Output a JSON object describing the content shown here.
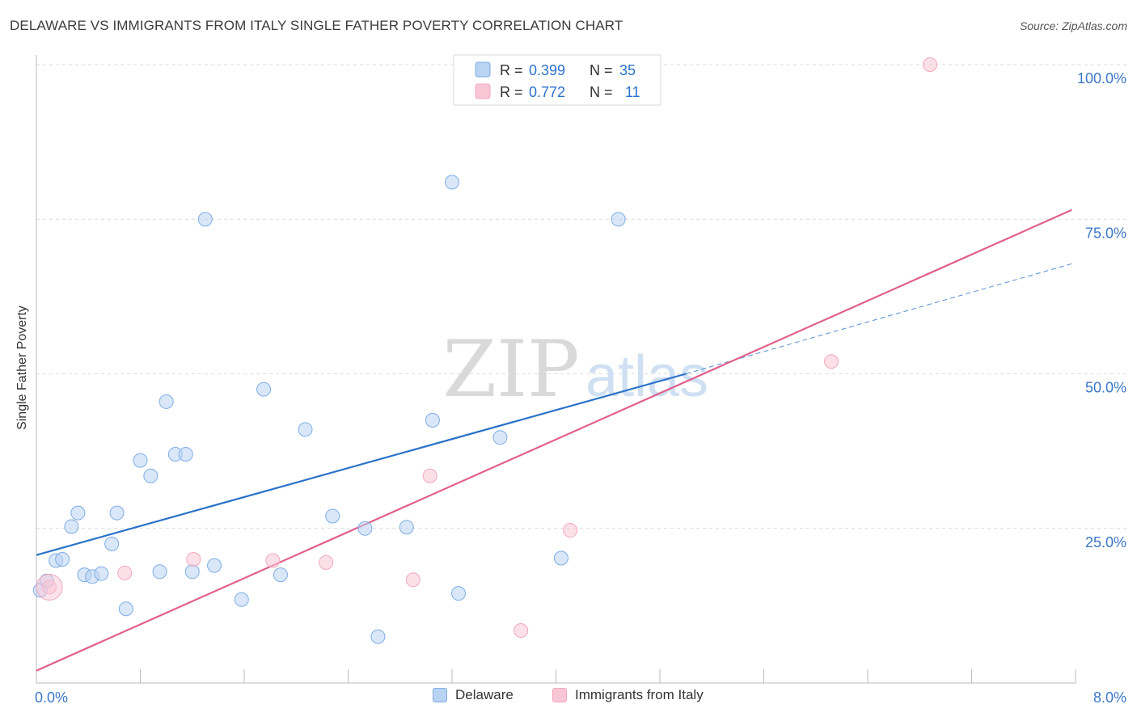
{
  "header": {
    "title": "DELAWARE VS IMMIGRANTS FROM ITALY SINGLE FATHER POVERTY CORRELATION CHART",
    "source": "Source: ZipAtlas.com"
  },
  "watermark": {
    "zip": "ZIP",
    "atlas": "atlas"
  },
  "chart_data": {
    "type": "scatter",
    "title": "DELAWARE VS IMMIGRANTS FROM ITALY SINGLE FATHER POVERTY CORRELATION CHART",
    "xlabel": "",
    "ylabel": "Single Father Poverty",
    "xlim": [
      0,
      8
    ],
    "ylim": [
      0,
      100
    ],
    "x_tick_labels": [
      "0.0%",
      "8.0%"
    ],
    "y_ticks": [
      25,
      50,
      75,
      100
    ],
    "y_tick_labels": [
      "25.0%",
      "50.0%",
      "75.0%",
      "100.0%"
    ],
    "legend_position": "top-center",
    "series": [
      {
        "name": "Delaware",
        "color": "#7eaee6",
        "line_color": "#2a72c9",
        "R": "0.399",
        "N": "35",
        "x": [
          0.03,
          0.08,
          0.15,
          0.2,
          0.27,
          0.32,
          0.37,
          0.43,
          0.5,
          0.58,
          0.62,
          0.69,
          0.8,
          0.88,
          0.95,
          1.0,
          1.07,
          1.15,
          1.2,
          1.3,
          1.37,
          1.58,
          1.75,
          1.88,
          2.07,
          2.28,
          2.53,
          2.63,
          2.85,
          3.05,
          3.25,
          3.57,
          4.04,
          4.48,
          3.2
        ],
        "y": [
          15.0,
          16.5,
          19.8,
          20.0,
          25.3,
          27.5,
          17.5,
          17.2,
          17.7,
          22.5,
          27.5,
          12.0,
          36.0,
          33.5,
          18.0,
          45.5,
          37.0,
          37.0,
          18.0,
          75.0,
          19.0,
          13.5,
          47.5,
          17.5,
          41.0,
          27.0,
          25.0,
          7.5,
          25.2,
          42.5,
          14.5,
          39.7,
          20.2,
          75.0,
          81.0
        ],
        "trend": {
          "x": [
            0,
            5.0
          ],
          "y": [
            20.7,
            50.0
          ],
          "dashed_extension": {
            "x": [
              5.0,
              7.97
            ],
            "y": [
              50.0,
              67.8
            ]
          }
        }
      },
      {
        "name": "Immigrants from Italy",
        "color": "#f3a7bf",
        "line_color": "#e0608c",
        "R": "0.772",
        "N": "11",
        "x": [
          0.1,
          0.68,
          1.21,
          1.82,
          2.23,
          2.9,
          3.03,
          3.73,
          4.11,
          6.12,
          6.88
        ],
        "y": [
          15.5,
          17.8,
          20.0,
          19.8,
          19.5,
          16.7,
          33.5,
          8.5,
          24.7,
          52.0,
          100.0
        ],
        "trend": {
          "x": [
            0,
            7.97
          ],
          "y": [
            2.0,
            76.5
          ]
        }
      }
    ]
  },
  "legend_top": {
    "r_label": "R =",
    "n_label": "N =",
    "rows": [
      {
        "r": "0.399",
        "n": "35"
      },
      {
        "r": "0.772",
        "n": "11"
      }
    ]
  },
  "legend_bottom": [
    {
      "label": "Delaware"
    },
    {
      "label": "Immigrants from Italy"
    }
  ]
}
